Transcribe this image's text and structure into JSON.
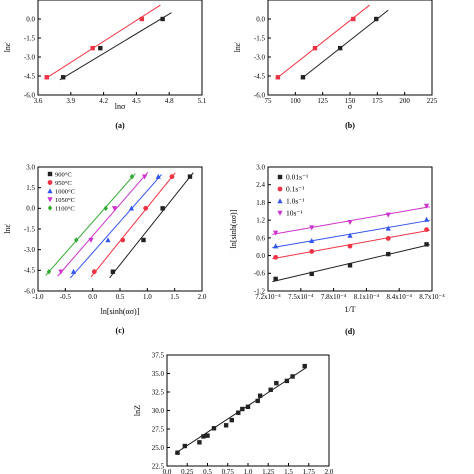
{
  "chart_data": [
    {
      "id": "a",
      "type": "scatter",
      "caption": "(a)",
      "xlabel": "lnσ",
      "ylabel": "lnε̇",
      "xlim": [
        3.6,
        5.1
      ],
      "ylim": [
        -6.0,
        1.5
      ],
      "xticks": [
        3.6,
        3.9,
        4.2,
        4.5,
        4.8,
        5.1
      ],
      "xtick_labels": [
        "3.6",
        "3.9",
        "4.2",
        "4.5",
        "4.8",
        "5.1"
      ],
      "yticks": [
        -6.0,
        -4.5,
        -3.0,
        -1.5,
        0.0
      ],
      "ytick_labels": [
        "-6.0",
        "-4.5",
        "-3.0",
        "-1.5",
        "0.0"
      ],
      "series": [
        {
          "color": "#ee3344",
          "marker": "square",
          "x": [
            3.68,
            4.1,
            4.55
          ],
          "y": [
            -4.6,
            -2.3,
            0.0
          ],
          "fit": [
            [
              3.66,
              -4.75
            ],
            [
              4.72,
              1.1
            ]
          ]
        },
        {
          "color": "#222222",
          "marker": "square",
          "x": [
            3.83,
            4.17,
            4.74
          ],
          "y": [
            -4.6,
            -2.3,
            0.0
          ],
          "fit": [
            [
              3.8,
              -4.8
            ],
            [
              4.82,
              0.5
            ]
          ]
        }
      ]
    },
    {
      "id": "b",
      "type": "scatter",
      "caption": "(b)",
      "xlabel": "σ",
      "ylabel": "lnε̇",
      "xlim": [
        75,
        225
      ],
      "ylim": [
        -6.0,
        1.5
      ],
      "xticks": [
        75,
        100,
        125,
        150,
        175,
        200,
        225
      ],
      "xtick_labels": [
        "75",
        "100",
        "125",
        "150",
        "175",
        "200",
        "225"
      ],
      "yticks": [
        -6.0,
        -4.5,
        -3.0,
        -1.5,
        0.0
      ],
      "ytick_labels": [
        "-6.0",
        "-4.5",
        "-3.0",
        "-1.5",
        "0.0"
      ],
      "series": [
        {
          "color": "#ee3344",
          "marker": "square",
          "x": [
            84,
            118,
            153
          ],
          "y": [
            -4.6,
            -2.3,
            0.0
          ],
          "fit": [
            [
              82,
              -4.75
            ],
            [
              168,
              1.1
            ]
          ]
        },
        {
          "color": "#222222",
          "marker": "square",
          "x": [
            107,
            141,
            174
          ],
          "y": [
            -4.6,
            -2.3,
            0.0
          ],
          "fit": [
            [
              105,
              -4.75
            ],
            [
              185,
              0.7
            ]
          ]
        }
      ]
    },
    {
      "id": "c",
      "type": "scatter",
      "caption": "(c)",
      "xlabel": "ln[sinh(ασ)]",
      "ylabel": "lnε̇",
      "xlim": [
        -1.0,
        2.0
      ],
      "ylim": [
        -6.0,
        3.0
      ],
      "xticks": [
        -1.0,
        -0.5,
        0.0,
        0.5,
        1.0,
        1.5,
        2.0
      ],
      "xtick_labels": [
        "-1.0",
        "-0.5",
        "0.0",
        "0.5",
        "1.0",
        "1.5",
        "2.0"
      ],
      "yticks": [
        -6.0,
        -4.5,
        -3.0,
        -1.5,
        0.0,
        1.5,
        3.0
      ],
      "ytick_labels": [
        "-6.0",
        "-4.5",
        "-3.0",
        "-1.5",
        "0.0",
        "1.5",
        "3.0"
      ],
      "legend": [
        "900°C",
        "950°C",
        "1000°C",
        "1050°C",
        "1100°C"
      ],
      "series": [
        {
          "name": "900°C",
          "color": "#222222",
          "marker": "square",
          "x": [
            0.37,
            0.93,
            1.28,
            1.78
          ],
          "y": [
            -4.6,
            -2.3,
            0.0,
            2.3
          ]
        },
        {
          "name": "950°C",
          "color": "#ee3344",
          "marker": "circle",
          "x": [
            0.03,
            0.55,
            0.97,
            1.45
          ],
          "y": [
            -4.6,
            -2.3,
            0.0,
            2.3
          ]
        },
        {
          "name": "1000°C",
          "color": "#3355ee",
          "marker": "triangle",
          "x": [
            -0.35,
            0.28,
            0.71,
            1.2
          ],
          "y": [
            -4.6,
            -2.3,
            0.0,
            2.3
          ]
        },
        {
          "name": "1050°C",
          "color": "#cc33cc",
          "marker": "triangle-down",
          "x": [
            -0.58,
            -0.03,
            0.4,
            0.95
          ],
          "y": [
            -4.6,
            -2.3,
            0.0,
            2.3
          ]
        },
        {
          "name": "1100°C",
          "color": "#33aa33",
          "marker": "diamond",
          "x": [
            -0.8,
            -0.3,
            0.24,
            0.72
          ],
          "y": [
            -4.6,
            -2.3,
            0.0,
            2.3
          ]
        }
      ]
    },
    {
      "id": "d",
      "type": "scatter",
      "caption": "(d)",
      "xlabel": "1/T",
      "ylabel": "ln[sinh(ασ)]",
      "xlim": [
        7.2,
        8.7
      ],
      "ylim": [
        -1.2,
        3.0
      ],
      "xticks": [
        7.2,
        7.5,
        7.8,
        8.1,
        8.4,
        8.7
      ],
      "xtick_labels": [
        "7.2x10⁻⁴",
        "7.5x10⁻⁴",
        "7.8x10⁻⁴",
        "8.1x10⁻⁴",
        "8.4x10⁻⁴",
        "8.7x10⁻⁴"
      ],
      "yticks": [
        -1.2,
        -0.6,
        0.0,
        0.6,
        1.2,
        1.8,
        2.4,
        3.0
      ],
      "ytick_labels": [
        "-1.2",
        "-0.6",
        "0.0",
        "0.6",
        "1.2",
        "1.8",
        "2.4",
        "3.0"
      ],
      "legend": [
        "0.01s⁻¹",
        "0.1s⁻¹",
        "1.0s⁻¹",
        "10s⁻¹"
      ],
      "series": [
        {
          "name": "0.01s⁻¹",
          "color": "#222222",
          "marker": "square",
          "x": [
            7.27,
            7.6,
            7.95,
            8.3,
            8.65
          ],
          "y": [
            -0.79,
            -0.62,
            -0.33,
            0.05,
            0.38
          ]
        },
        {
          "name": "0.1s⁻¹",
          "color": "#ee3344",
          "marker": "circle",
          "x": [
            7.27,
            7.6,
            7.95,
            8.3,
            8.65
          ],
          "y": [
            -0.06,
            0.14,
            0.32,
            0.58,
            0.88
          ]
        },
        {
          "name": "1.0s⁻¹",
          "color": "#3355ee",
          "marker": "triangle",
          "x": [
            7.27,
            7.6,
            7.95,
            8.3,
            8.65
          ],
          "y": [
            0.32,
            0.5,
            0.68,
            0.92,
            1.22
          ]
        },
        {
          "name": "10s⁻¹",
          "color": "#cc33cc",
          "marker": "triangle-down",
          "x": [
            7.27,
            7.6,
            7.95,
            8.3,
            8.65
          ],
          "y": [
            0.77,
            0.95,
            1.13,
            1.38,
            1.68
          ]
        }
      ]
    },
    {
      "id": "e",
      "type": "scatter",
      "caption": "",
      "xlabel": "",
      "ylabel": "lnZ",
      "xlim": [
        0.0,
        2.0
      ],
      "ylim": [
        22.5,
        37.5
      ],
      "xticks": [
        0.0,
        0.25,
        0.5,
        0.75,
        1.0,
        1.25,
        1.5,
        1.75,
        2.0
      ],
      "xtick_labels": [
        "0.0",
        "0.25",
        "0.5",
        "0.75",
        "1.0",
        "1.25",
        "1.5",
        "1.75",
        "2.0"
      ],
      "yticks": [
        22.5,
        25.0,
        27.5,
        30.0,
        32.5,
        35.0,
        37.5
      ],
      "ytick_labels": [
        "22.5",
        "25.0",
        "27.5",
        "30.0",
        "32.5",
        "35.0",
        "37.5"
      ],
      "series": [
        {
          "color": "#222222",
          "marker": "square",
          "x": [
            0.13,
            0.22,
            0.4,
            0.45,
            0.5,
            0.58,
            0.73,
            0.8,
            0.88,
            0.93,
            1.0,
            1.12,
            1.15,
            1.28,
            1.35,
            1.48,
            1.55,
            1.7
          ],
          "y": [
            24.3,
            25.2,
            25.7,
            26.5,
            26.6,
            27.6,
            28.0,
            28.7,
            29.7,
            30.2,
            30.5,
            31.3,
            32.0,
            32.8,
            33.7,
            34.0,
            34.6,
            36.0
          ],
          "fit": [
            [
              0.1,
              24.2
            ],
            [
              1.72,
              35.8
            ]
          ]
        }
      ]
    }
  ]
}
